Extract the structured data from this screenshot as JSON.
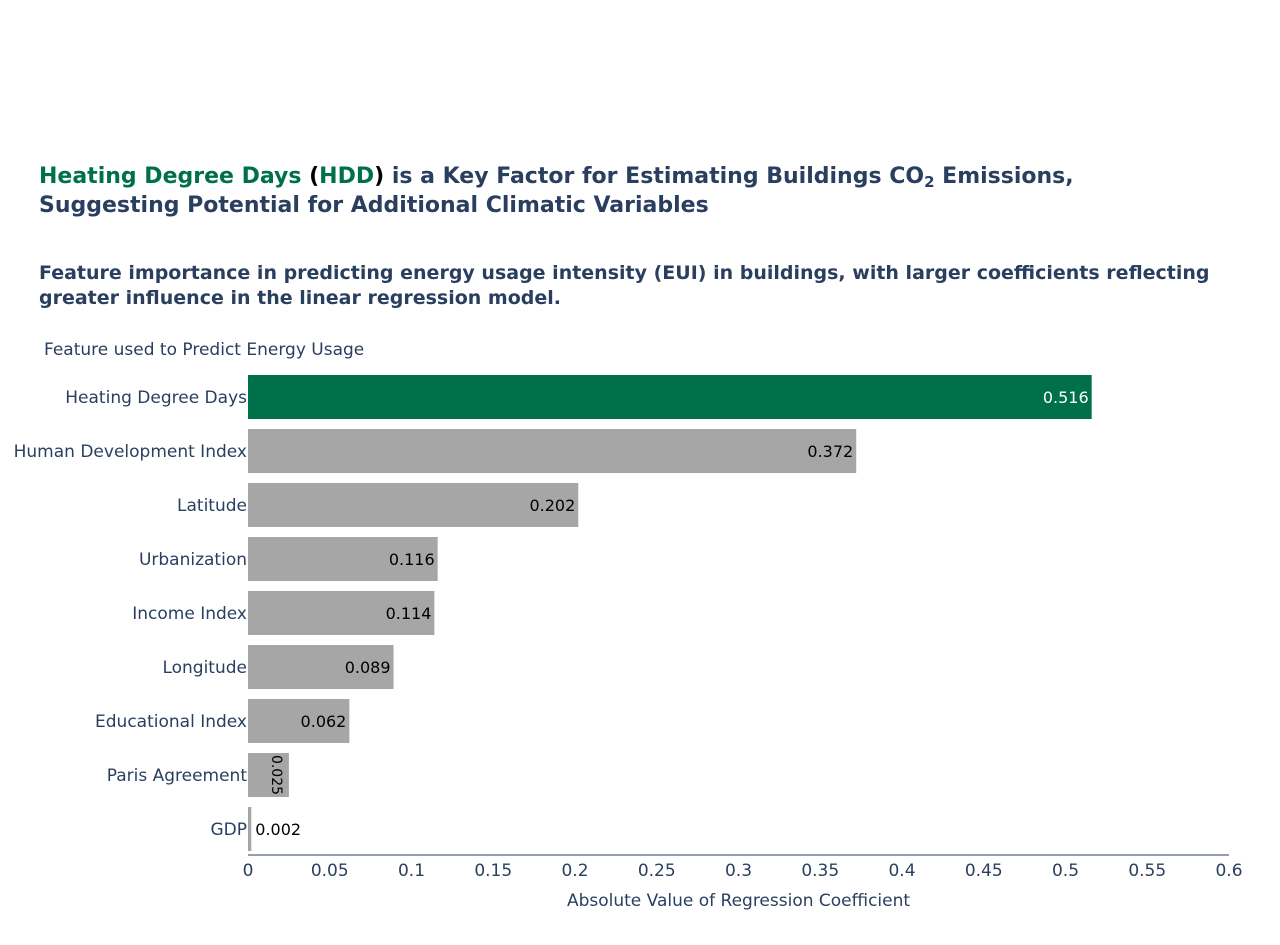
{
  "title": {
    "part1": "Heating Degree Days",
    "part2": " (",
    "part3": "HDD",
    "part4": ")",
    "part5": " is a Key Factor for Estimating Buildings CO",
    "part6": "2",
    "part7": " Emissions,",
    "line2": "Suggesting Potential for Additional Climatic Variables"
  },
  "subtitle": "Feature importance in predicting energy usage intensity (EUI) in buildings, with larger coefficients reflecting greater influence in the linear regression model.",
  "colors": {
    "highlight": "#00704a",
    "default_bar": "#a6a6a6",
    "text": "#2a3f5f"
  },
  "chart_data": {
    "type": "bar",
    "orientation": "horizontal",
    "ylabel": "Feature used to Predict Energy Usage",
    "xlabel": "Absolute Value of Regression Coefficient",
    "categories": [
      "Heating Degree Days",
      "Human Development Index",
      "Latitude",
      "Urbanization",
      "Income Index",
      "Longitude",
      "Educational Index",
      "Paris Agreement",
      "GDP"
    ],
    "values": [
      0.516,
      0.372,
      0.202,
      0.116,
      0.114,
      0.089,
      0.062,
      0.025,
      0.002
    ],
    "labels": [
      "0.516",
      "0.372",
      "0.202",
      "0.116",
      "0.114",
      "0.089",
      "0.062",
      "0.025",
      "0.002"
    ],
    "highlighted": [
      "Heating Degree Days"
    ],
    "xlim": [
      0,
      0.6
    ],
    "xticks": [
      0,
      0.05,
      0.1,
      0.15,
      0.2,
      0.25,
      0.3,
      0.35,
      0.4,
      0.45,
      0.5,
      0.55,
      0.6
    ],
    "xtick_labels": [
      "0",
      "0.05",
      "0.1",
      "0.15",
      "0.2",
      "0.25",
      "0.3",
      "0.35",
      "0.4",
      "0.45",
      "0.5",
      "0.55",
      "0.6"
    ],
    "grid": false,
    "legend": "none"
  }
}
